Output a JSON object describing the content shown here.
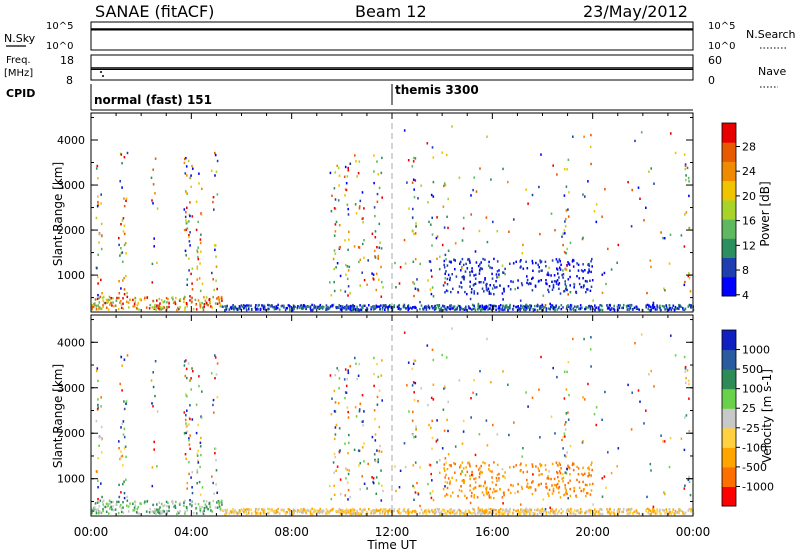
{
  "header": {
    "station": "SANAE (fitACF)",
    "beam": "Beam 12",
    "date": "23/May/2012"
  },
  "nsky_panel": {
    "left_label": "N.Sky",
    "right_label": "N.Search",
    "left_ticks": [
      "10^5",
      "10^0"
    ],
    "right_ticks": [
      "10^5",
      "10^0"
    ]
  },
  "freq_panel": {
    "left_label_1": "Freq.",
    "left_label_2": "[MHz]",
    "right_label": "Nave",
    "left_ticks": [
      "18",
      "8"
    ],
    "right_ticks": [
      "60",
      "0"
    ]
  },
  "cpid": {
    "label": "CPID",
    "mode_1": "normal (fast) 151",
    "mode_2": "themis 3300",
    "mode_2_start_hour": 12.0
  },
  "colors": {
    "power": [
      "#0000ff",
      "#1f3fb0",
      "#2d8f5f",
      "#5fb85f",
      "#a8d42a",
      "#f0c400",
      "#f08a00",
      "#e85a00",
      "#e80000"
    ],
    "velocity": [
      "#ff0000",
      "#ff6f00",
      "#ffa500",
      "#ffd040",
      "#c8c8c8",
      "#6ad24a",
      "#2e8b57",
      "#2a5aa0",
      "#1020c0"
    ]
  },
  "chart_data": [
    {
      "type": "heatmap",
      "name": "power",
      "xlabel": "Time UT",
      "ylabel": "Slant Range [km]",
      "xlim": [
        0,
        24
      ],
      "ylim": [
        180,
        4600
      ],
      "x_ticks": [
        "00:00",
        "04:00",
        "08:00",
        "12:00",
        "16:00",
        "20:00",
        "00:00"
      ],
      "y_ticks": [
        1000,
        2000,
        3000,
        4000
      ],
      "colorbar_label": "Power [dB]",
      "colorbar_ticks": [
        "28",
        "24",
        "20",
        "16",
        "12",
        "8",
        "4"
      ]
    },
    {
      "type": "heatmap",
      "name": "velocity",
      "xlabel": "Time UT",
      "ylabel": "Slant Range [km]",
      "xlim": [
        0,
        24
      ],
      "ylim": [
        180,
        4600
      ],
      "x_ticks": [
        "00:00",
        "04:00",
        "08:00",
        "12:00",
        "16:00",
        "20:00",
        "00:00"
      ],
      "y_ticks": [
        1000,
        2000,
        3000,
        4000
      ],
      "colorbar_label": "Velocity [m s-1]",
      "colorbar_ticks": [
        "1000",
        "500",
        "100",
        "25",
        "-25",
        "-100",
        "-500",
        "-1000"
      ]
    }
  ]
}
